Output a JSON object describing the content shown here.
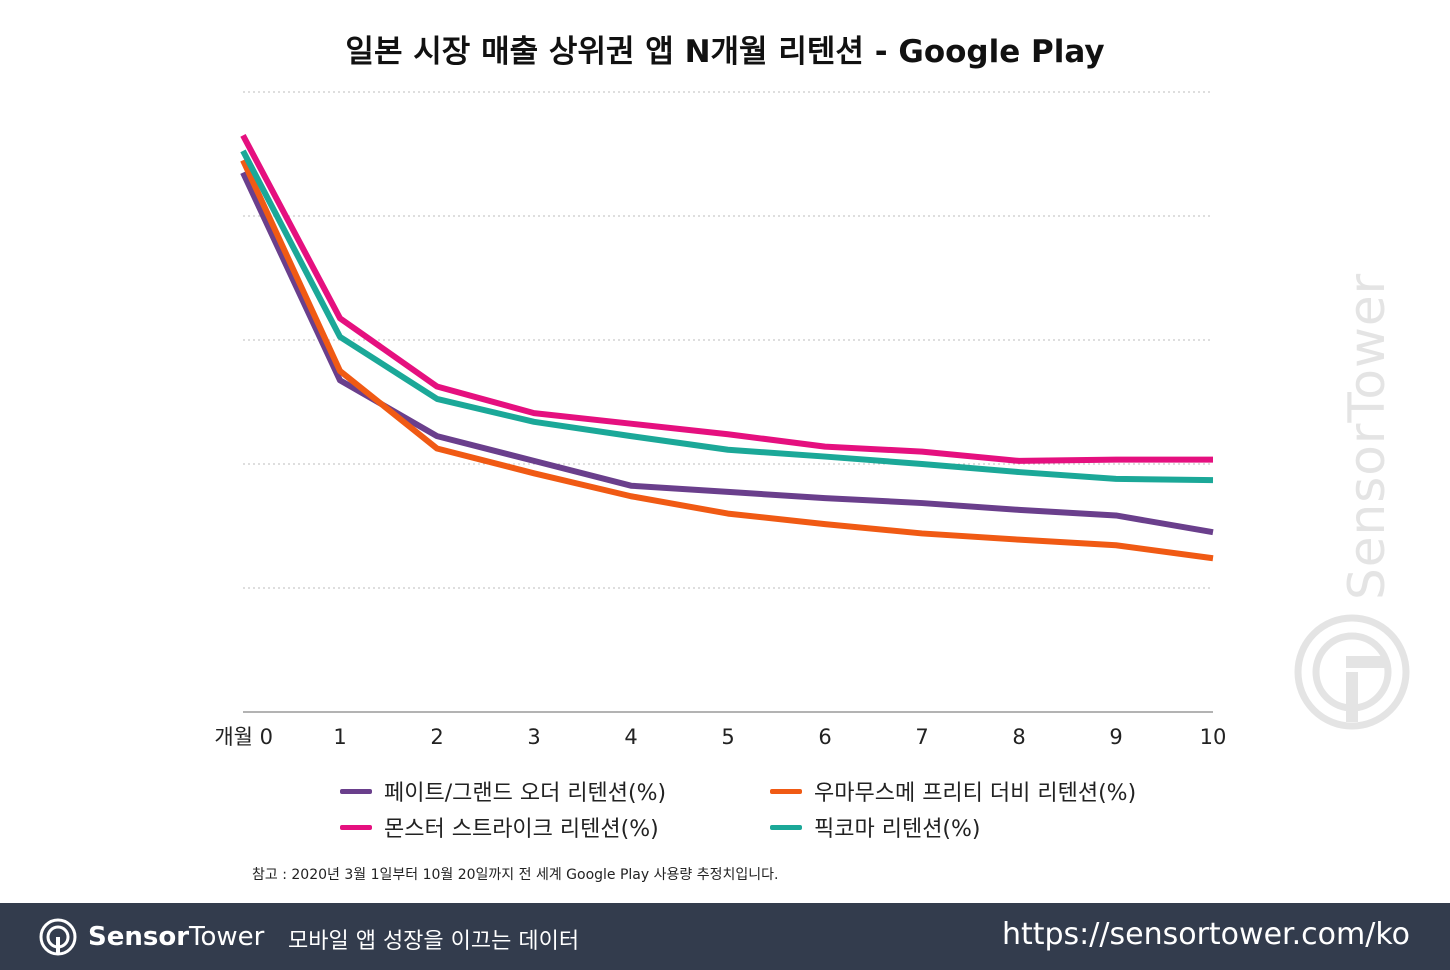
{
  "chart_data": {
    "type": "line",
    "title": "일본 시장 매출 상위권 앱 N개월 리텐션 - Google Play",
    "x_tick_first": "개월 0",
    "x": [
      0,
      1,
      2,
      3,
      4,
      5,
      6,
      7,
      8,
      9,
      10
    ],
    "x_tick_labels": [
      "개월 0",
      "1",
      "2",
      "3",
      "4",
      "5",
      "6",
      "7",
      "8",
      "9",
      "10"
    ],
    "ylim": [
      0,
      100
    ],
    "y_gridlines": [
      20,
      40,
      60,
      80,
      100
    ],
    "y_tick_labels_shown": false,
    "grid": true,
    "legend_position": "bottom",
    "series": [
      {
        "name": "페이트/그랜드 오더 리텐션(%)",
        "color": "#6a3f8c",
        "values": [
          87,
          53.5,
          44.5,
          40.5,
          36.5,
          35.5,
          34.5,
          33.7,
          32.6,
          31.7,
          29
        ]
      },
      {
        "name": "우마무스메 프리티 더비 리텐션(%)",
        "color": "#f05a14",
        "values": [
          89,
          55,
          42.5,
          38.5,
          34.8,
          32,
          30.3,
          28.8,
          27.8,
          26.9,
          24.8
        ]
      },
      {
        "name": "몬스터 스트라이크 리텐션(%)",
        "color": "#e5107f",
        "values": [
          93,
          63.5,
          52.5,
          48.2,
          46.5,
          44.8,
          42.8,
          42,
          40.5,
          40.7,
          40.7
        ]
      },
      {
        "name": "픽코마 리텐션(%)",
        "color": "#1ba898",
        "values": [
          90.5,
          60.5,
          50.5,
          46.8,
          44.5,
          42.3,
          41.2,
          40,
          38.7,
          37.6,
          37.4
        ]
      }
    ]
  },
  "note": "참고 : 2020년 3월 1일부터 10월 20일까지 전 세계 Google Play 사용량 추정치입니다.",
  "watermark": {
    "text": "SensorTower"
  },
  "footer": {
    "brand_bold": "Sensor",
    "brand_rest": "Tower",
    "tagline": "모바일 앱 성장을 이끄는 데이터",
    "url": "https://sensortower.com/ko"
  }
}
